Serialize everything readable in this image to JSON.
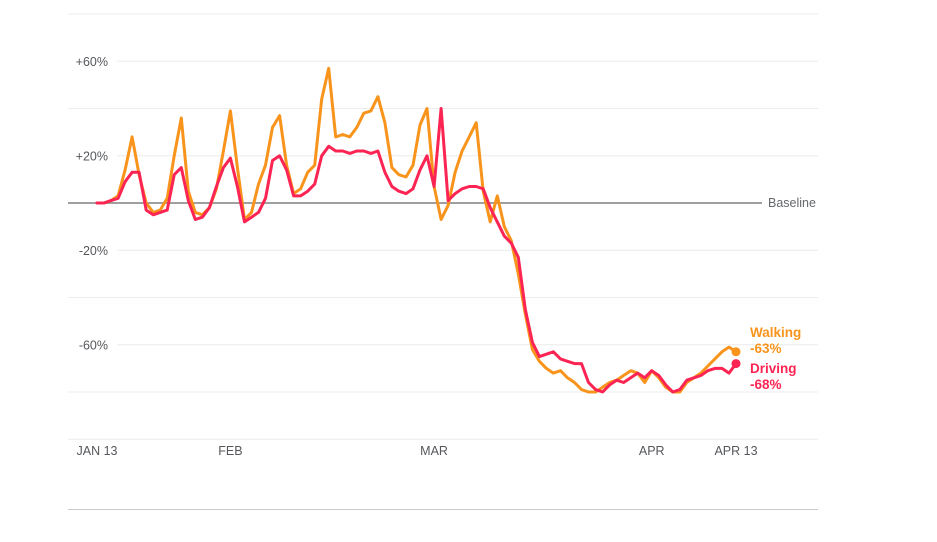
{
  "chart_data": {
    "type": "line",
    "frequency": "daily",
    "date_range": [
      "JAN 13",
      "APR 13"
    ],
    "grid": true,
    "legend_position": "right-of-line-end",
    "baseline_label": "Baseline",
    "baseline_value": 0,
    "x_axis": {
      "ticks": [
        {
          "label": "JAN 13",
          "day": 0
        },
        {
          "label": "FEB",
          "day": 19
        },
        {
          "label": "MAR",
          "day": 48
        },
        {
          "label": "APR",
          "day": 79
        },
        {
          "label": "APR 13",
          "day": 91
        }
      ]
    },
    "y_axis": {
      "unit": "%",
      "ylim": [
        -100,
        80
      ],
      "ticks": [
        {
          "label": "+60%",
          "value": 60
        },
        {
          "label": "+20%",
          "value": 20
        },
        {
          "label": "-20%",
          "value": -20
        },
        {
          "label": "-60%",
          "value": -60
        }
      ],
      "unlabeled_gridlines": [
        80,
        40,
        -40,
        -80,
        -100
      ]
    },
    "colors": {
      "gridline": "#ececec",
      "baseline": "#9f9f9f",
      "axis_text": "#55575b",
      "separator": "#cbcbcb"
    },
    "series": [
      {
        "name": "Walking",
        "current_change_label": "-63%",
        "current_value_pct": -63,
        "color": "#f8941c",
        "values": [
          0,
          0,
          1,
          3,
          14,
          28,
          12,
          0,
          -4,
          -3,
          2,
          20,
          36,
          5,
          -4,
          -5,
          -2,
          6,
          22,
          39,
          15,
          -7,
          -4,
          8,
          16,
          32,
          37,
          16,
          4,
          6,
          13,
          16,
          44,
          57,
          28,
          29,
          28,
          32,
          38,
          39,
          45,
          34,
          15,
          12,
          11,
          16,
          33,
          40,
          7,
          -7,
          -1,
          13,
          22,
          28,
          34,
          5,
          -8,
          3,
          -10,
          -16,
          -30,
          -47,
          -62,
          -67,
          -70,
          -72,
          -71,
          -74,
          -76,
          -79,
          -80,
          -80,
          -78,
          -76,
          -75,
          -73,
          -71,
          -72,
          -76,
          -71,
          -74,
          -78,
          -80,
          -80,
          -76,
          -74,
          -72,
          -69,
          -66,
          -63,
          -61,
          -63
        ]
      },
      {
        "name": "Driving",
        "current_change_label": "-68%",
        "current_value_pct": -68,
        "color": "#fb2453",
        "values": [
          0,
          0,
          1,
          2,
          9,
          13,
          13,
          -3,
          -5,
          -4,
          -3,
          12,
          15,
          1,
          -7,
          -6,
          -2,
          7,
          15,
          19,
          7,
          -8,
          -6,
          -4,
          2,
          18,
          20,
          14,
          3,
          3,
          5,
          8,
          20,
          24,
          22,
          22,
          21,
          22,
          22,
          21,
          22,
          13,
          7,
          5,
          4,
          6,
          14,
          20,
          7,
          40,
          1,
          4,
          6,
          7,
          7,
          6,
          -2,
          -8,
          -14,
          -17,
          -23,
          -45,
          -59,
          -65,
          -64,
          -63,
          -66,
          -67,
          -68,
          -68,
          -76,
          -79,
          -80,
          -77,
          -75,
          -76,
          -74,
          -72,
          -74,
          -71,
          -73,
          -77,
          -80,
          -79,
          -75,
          -74,
          -73,
          -71,
          -70,
          -70,
          -72,
          -68
        ]
      }
    ]
  }
}
